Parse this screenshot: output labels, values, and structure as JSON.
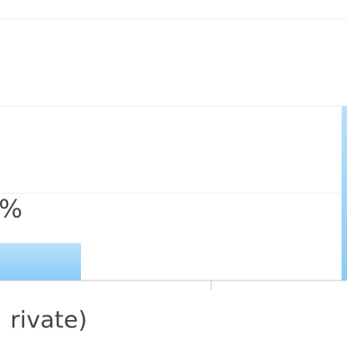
{
  "chart_data": {
    "type": "bar",
    "categories": [
      "rivate)",
      null
    ],
    "values": [
      0.43,
      2.0
    ],
    "annotations": [
      "%"
    ],
    "color": "#9fd3fa",
    "ylim": [
      0,
      3.1
    ],
    "yticks": [
      0,
      1,
      2,
      3
    ],
    "grid": true
  }
}
